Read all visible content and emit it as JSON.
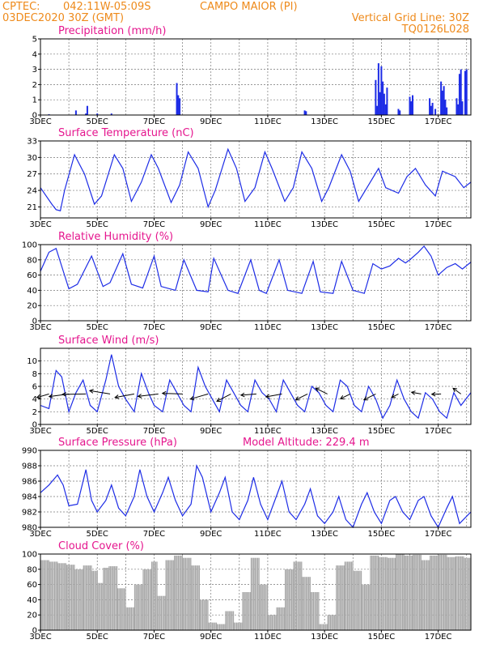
{
  "header": {
    "source": "CPTEC:",
    "coords": "042:11W-05:09S",
    "station": "CAMPO MAIOR (PI)",
    "run_time": "03DEC2020 30Z (GMT)",
    "grid_note": "Vertical Grid Line: 30Z",
    "model_code": "TQ0126L028"
  },
  "x_axis": {
    "tick_labels": [
      "3DEC",
      "5DEC",
      "7DEC",
      "9DEC",
      "11DEC",
      "13DEC",
      "15DEC",
      "17DEC"
    ],
    "day_start": 3,
    "day_end": 18.15
  },
  "colors": {
    "series": "#1d2ce6",
    "cloud": "#a8a8a8",
    "title": "#e5168e",
    "header": "#ee8a1b"
  },
  "chart_data": [
    {
      "type": "bar",
      "title": "Precipitation (mm/h)",
      "ylim": [
        0,
        5
      ],
      "yticks": [
        0,
        1,
        2,
        3,
        4,
        5
      ],
      "x": [
        3.3,
        4.25,
        4.6,
        4.65,
        5.0,
        5.5,
        7.8,
        7.85,
        7.9,
        12.3,
        12.35,
        14.8,
        14.85,
        14.9,
        14.95,
        15.0,
        15.05,
        15.1,
        15.15,
        15.2,
        15.6,
        15.65,
        16.0,
        16.05,
        16.1,
        16.7,
        16.75,
        16.8,
        16.9,
        17.1,
        17.15,
        17.2,
        17.25,
        17.3,
        17.65,
        17.7,
        17.75,
        17.8,
        17.85,
        17.95,
        18.0
      ],
      "values": [
        0.05,
        0.3,
        0.1,
        0.6,
        0.1,
        0.1,
        2.1,
        1.3,
        1.1,
        0.3,
        0.25,
        2.3,
        0.6,
        3.4,
        1.5,
        3.2,
        2.2,
        1.4,
        0.7,
        1.8,
        0.4,
        0.3,
        1.2,
        0.9,
        1.3,
        1.1,
        0.6,
        0.8,
        0.4,
        2.2,
        1.6,
        1.9,
        1.0,
        0.5,
        1.1,
        0.7,
        2.7,
        3.0,
        0.9,
        2.9,
        3.0
      ]
    },
    {
      "type": "line",
      "title": "Surface Temperature (nC)",
      "ylim": [
        19,
        33
      ],
      "yticks": [
        21,
        24,
        27,
        30,
        33
      ],
      "x": [
        3.0,
        3.4,
        3.55,
        3.7,
        3.85,
        4.2,
        4.55,
        4.9,
        5.15,
        5.6,
        5.9,
        6.2,
        6.55,
        6.9,
        7.15,
        7.6,
        7.9,
        8.2,
        8.55,
        8.9,
        9.15,
        9.6,
        9.9,
        10.2,
        10.55,
        10.9,
        11.15,
        11.6,
        11.9,
        12.2,
        12.55,
        12.9,
        13.15,
        13.6,
        13.9,
        14.2,
        14.55,
        14.9,
        15.15,
        15.6,
        15.9,
        16.2,
        16.55,
        16.9,
        17.15,
        17.6,
        17.9,
        18.15
      ],
      "values": [
        24.5,
        21.5,
        20.5,
        20.3,
        24,
        30.5,
        27,
        21.5,
        23,
        30.5,
        28,
        22.0,
        25.5,
        30.5,
        28,
        21.8,
        25,
        31.0,
        28,
        21.0,
        24,
        31.5,
        28,
        22.0,
        24.5,
        31.0,
        28,
        22.0,
        24.5,
        31.0,
        28,
        22.0,
        24.5,
        30.5,
        27.5,
        22.0,
        25,
        28.0,
        24.5,
        23.5,
        26.5,
        28.0,
        25,
        23.0,
        27.5,
        26.5,
        24.5,
        25.5
      ]
    },
    {
      "type": "line",
      "title": "Relative Humidity (%)",
      "ylim": [
        0,
        100
      ],
      "yticks": [
        0,
        20,
        40,
        60,
        80,
        100
      ],
      "x": [
        3.0,
        3.3,
        3.55,
        4.0,
        4.3,
        4.8,
        5.2,
        5.45,
        5.9,
        6.2,
        6.6,
        7.0,
        7.25,
        7.75,
        8.05,
        8.5,
        8.9,
        9.1,
        9.6,
        9.95,
        10.4,
        10.7,
        10.95,
        11.4,
        11.7,
        12.2,
        12.6,
        12.85,
        13.3,
        13.6,
        14.0,
        14.4,
        14.7,
        15.0,
        15.3,
        15.6,
        15.85,
        16.0,
        16.3,
        16.5,
        16.75,
        17.0,
        17.3,
        17.6,
        17.85,
        18.15
      ],
      "values": [
        65,
        90,
        95,
        42,
        48,
        85,
        45,
        50,
        88,
        48,
        43,
        85,
        45,
        40,
        80,
        40,
        38,
        82,
        40,
        36,
        80,
        40,
        36,
        80,
        40,
        36,
        78,
        38,
        36,
        78,
        40,
        36,
        75,
        68,
        72,
        82,
        76,
        80,
        90,
        98,
        85,
        60,
        70,
        75,
        68,
        77
      ]
    },
    {
      "type": "line",
      "title": "Surface Wind (m/s)",
      "ylim": [
        0,
        12
      ],
      "yticks": [
        0,
        2,
        4,
        6,
        8,
        10
      ],
      "x": [
        3.0,
        3.3,
        3.55,
        3.75,
        4.0,
        4.25,
        4.5,
        4.75,
        5.0,
        5.3,
        5.5,
        5.75,
        6.0,
        6.3,
        6.55,
        6.8,
        7.0,
        7.3,
        7.55,
        7.8,
        8.05,
        8.3,
        8.55,
        8.8,
        9.05,
        9.3,
        9.55,
        9.8,
        10.05,
        10.3,
        10.55,
        10.8,
        11.05,
        11.3,
        11.55,
        11.8,
        12.05,
        12.3,
        12.55,
        12.8,
        13.05,
        13.3,
        13.55,
        13.8,
        14.05,
        14.3,
        14.55,
        14.8,
        15.05,
        15.3,
        15.55,
        15.8,
        16.05,
        16.3,
        16.55,
        16.8,
        17.05,
        17.3,
        17.55,
        17.8,
        18.15
      ],
      "values": [
        3,
        2.5,
        8.5,
        7.5,
        2,
        5,
        7,
        3,
        2,
        7,
        11,
        6,
        4,
        2,
        8,
        5,
        3,
        2,
        7,
        5,
        3,
        2,
        9,
        6,
        4,
        2,
        7,
        5,
        3,
        2,
        7,
        5,
        4,
        2,
        7,
        5,
        3,
        2,
        6,
        5,
        3,
        2,
        7,
        6,
        3,
        2,
        6,
        4,
        1,
        3,
        7,
        4,
        2,
        1,
        5,
        4,
        2,
        1,
        5,
        3,
        5
      ],
      "vectors": {
        "x": [
          3.3,
          4.0,
          4.6,
          5.45,
          6.3,
          7.15,
          8.0,
          8.9,
          9.7,
          10.6,
          11.5,
          12.4,
          13.1,
          13.9,
          14.8,
          15.6,
          16.4,
          17.1,
          17.8
        ],
        "dir_deg": [
          45,
          75,
          100,
          95,
          70,
          90,
          80,
          60,
          55,
          65,
          70,
          60,
          120,
          45,
          60,
          30,
          110,
          115,
          130
        ],
        "speed": [
          5,
          6,
          7,
          6,
          6,
          6,
          6,
          6,
          5,
          5,
          5,
          4,
          4,
          4,
          4,
          4,
          3,
          3,
          3
        ]
      }
    },
    {
      "type": "line",
      "title": "Surface Pressure (hPa)",
      "annotation": "Model Altitude: 229.4 m",
      "ylim": [
        980,
        990
      ],
      "yticks": [
        980,
        982,
        984,
        986,
        988,
        990
      ],
      "x": [
        3.0,
        3.3,
        3.6,
        3.8,
        4.0,
        4.3,
        4.6,
        4.8,
        5.0,
        5.3,
        5.5,
        5.75,
        6.0,
        6.3,
        6.5,
        6.75,
        7.0,
        7.3,
        7.5,
        7.75,
        8.0,
        8.3,
        8.5,
        8.7,
        9.0,
        9.3,
        9.5,
        9.75,
        10.0,
        10.3,
        10.5,
        10.75,
        11.0,
        11.3,
        11.5,
        11.75,
        12.0,
        12.3,
        12.5,
        12.75,
        13.0,
        13.3,
        13.5,
        13.75,
        14.0,
        14.3,
        14.5,
        14.75,
        15.0,
        15.3,
        15.5,
        15.75,
        16.0,
        16.3,
        16.5,
        16.75,
        17.0,
        17.3,
        17.5,
        17.75,
        18.15
      ],
      "values": [
        984.5,
        985.5,
        986.8,
        985.5,
        982.8,
        983.0,
        987.5,
        983.5,
        982.0,
        983.5,
        985.5,
        982.5,
        981.5,
        984.0,
        987.5,
        984.0,
        982.0,
        984.5,
        986.5,
        983.5,
        981.5,
        983.0,
        988.0,
        986.5,
        982.0,
        984.5,
        986.5,
        982.0,
        981.0,
        983.5,
        986.5,
        983.0,
        981.0,
        984.0,
        986.0,
        982.0,
        981.0,
        983.0,
        985.0,
        981.5,
        980.5,
        982.0,
        984.0,
        981.0,
        980.0,
        983.0,
        984.5,
        982.0,
        980.5,
        983.5,
        984.0,
        982.0,
        981.0,
        983.5,
        984.0,
        981.5,
        980.0,
        982.5,
        984.0,
        980.5,
        982.0
      ]
    },
    {
      "type": "area",
      "title": "Cloud Cover (%)",
      "ylim": [
        0,
        100
      ],
      "yticks": [
        0,
        20,
        40,
        60,
        80,
        100
      ],
      "x": [
        3.0,
        3.3,
        3.6,
        3.9,
        4.2,
        4.5,
        4.8,
        5.0,
        5.2,
        5.4,
        5.7,
        6.0,
        6.3,
        6.6,
        6.9,
        7.1,
        7.4,
        7.7,
        8.0,
        8.3,
        8.6,
        8.9,
        9.2,
        9.5,
        9.8,
        10.1,
        10.4,
        10.7,
        11.0,
        11.3,
        11.6,
        11.9,
        12.2,
        12.5,
        12.8,
        13.1,
        13.4,
        13.7,
        14.0,
        14.3,
        14.6,
        14.9,
        15.2,
        15.5,
        15.8,
        16.1,
        16.4,
        16.7,
        17.0,
        17.3,
        17.6,
        17.9,
        18.15
      ],
      "values": [
        92,
        90,
        88,
        86,
        80,
        85,
        78,
        62,
        82,
        84,
        55,
        30,
        60,
        80,
        90,
        45,
        92,
        98,
        95,
        85,
        40,
        10,
        8,
        25,
        10,
        50,
        95,
        60,
        20,
        30,
        80,
        90,
        70,
        50,
        8,
        20,
        85,
        90,
        78,
        60,
        98,
        96,
        95,
        100,
        98,
        99,
        92,
        98,
        99,
        96,
        97,
        95,
        90
      ]
    }
  ]
}
